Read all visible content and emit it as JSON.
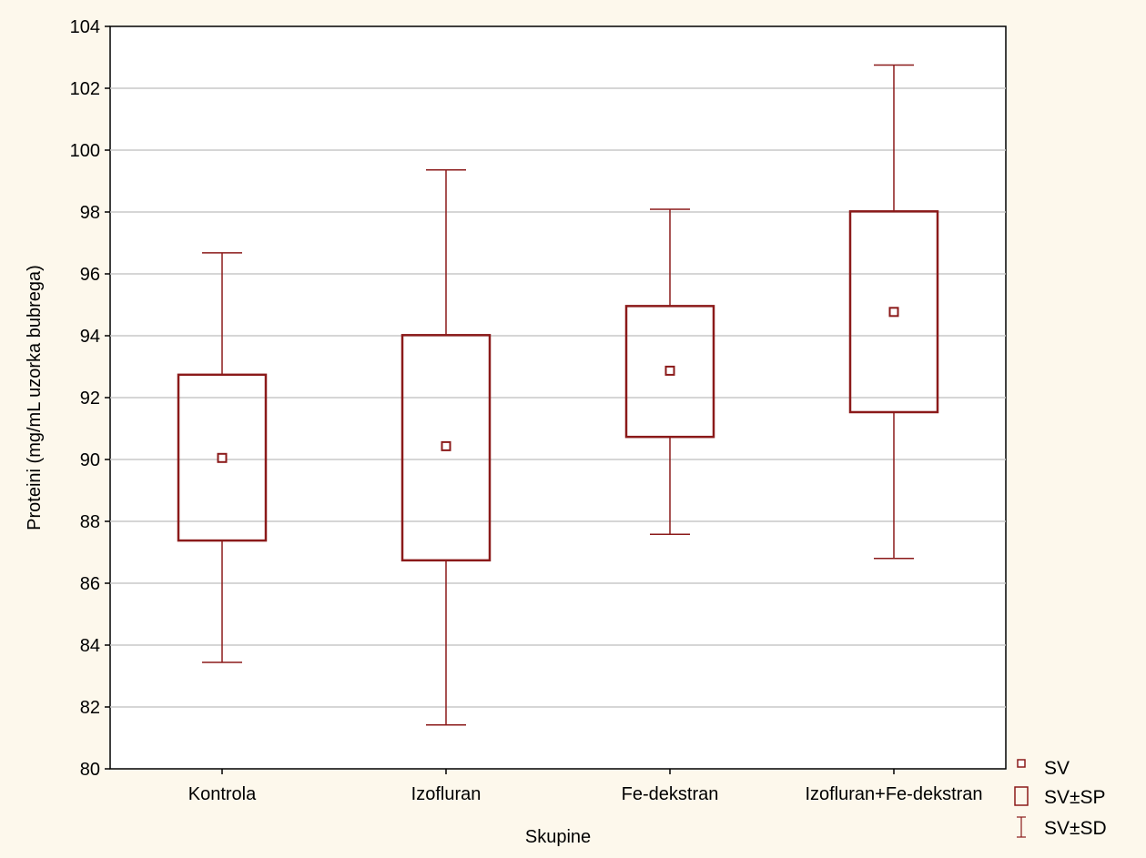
{
  "chart_data": {
    "type": "box",
    "xlabel": "Skupine",
    "ylabel": "Proteini (mg/mL uzorka bubrega)",
    "ylim": [
      80,
      104
    ],
    "yticks": [
      80,
      82,
      84,
      86,
      88,
      90,
      92,
      94,
      96,
      98,
      100,
      102,
      104
    ],
    "grid": true,
    "categories": [
      "Kontrola",
      "Izofluran",
      "Fe-dekstran",
      "Izofluran+Fe-dekstran"
    ],
    "mean": [
      90.05,
      90.43,
      92.87,
      94.77
    ],
    "se_low": [
      87.38,
      86.74,
      90.73,
      91.53
    ],
    "se_high": [
      92.74,
      94.02,
      94.96,
      98.02
    ],
    "sd_low": [
      83.44,
      81.42,
      87.58,
      86.8
    ],
    "sd_high": [
      96.68,
      99.36,
      98.09,
      102.75
    ],
    "legend": {
      "position": "bottom-right",
      "items": [
        {
          "symbol": "point",
          "label": "SV"
        },
        {
          "symbol": "box",
          "label": "SV±SP"
        },
        {
          "symbol": "whisker",
          "label": "SV±SD"
        }
      ]
    },
    "color": "#8b1a1a"
  }
}
